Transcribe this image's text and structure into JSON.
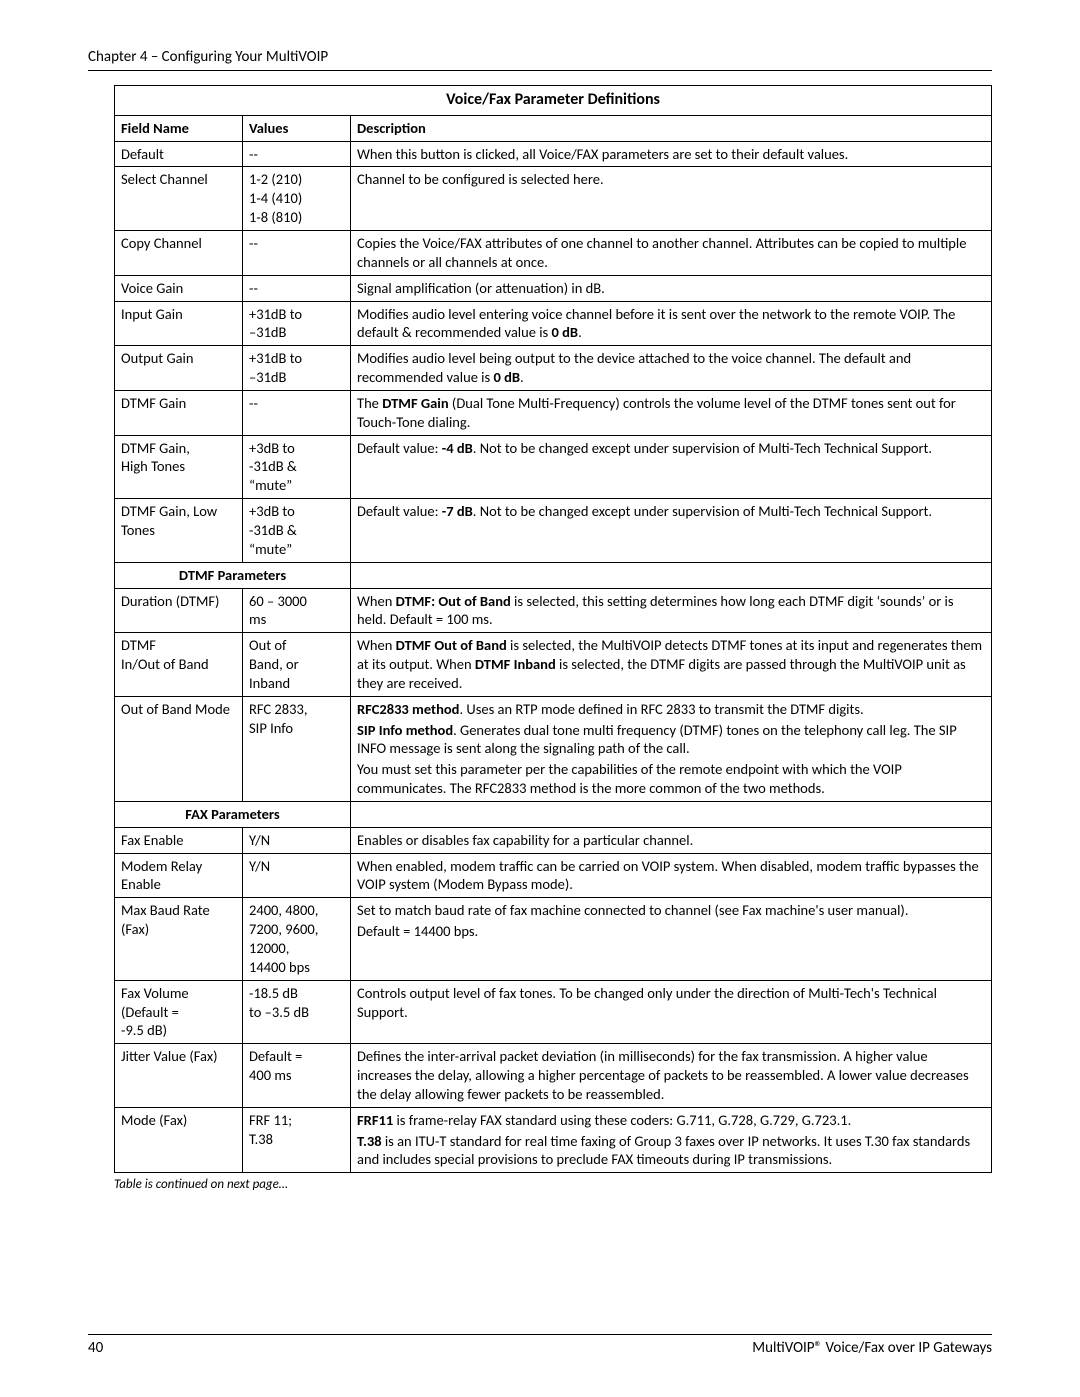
{
  "chapter": "Chapter 4 – Configuring Your MultiVOIP",
  "table": {
    "title": "Voice/Fax Parameter Definitions",
    "headers": {
      "field": "Field Name",
      "values": "Values",
      "desc": "Description"
    },
    "sections": {
      "dtmf": "DTMF Parameters",
      "fax": "FAX Parameters"
    },
    "rows": {
      "default": {
        "field": "Default",
        "values": "--",
        "desc": "When this button is clicked, all Voice/FAX parameters are set to their default values."
      },
      "select": {
        "field": "Select Channel",
        "values": "1-2 (210)\n1-4 (410)\n1-8 (810)",
        "desc": "Channel to be configured is selected here."
      },
      "copy": {
        "field": "Copy Channel",
        "values": "--",
        "desc": "Copies the Voice/FAX attributes of one channel to another channel. Attributes can be copied to multiple channels or all channels at once."
      },
      "voicegain": {
        "field": "Voice Gain",
        "values": "--",
        "desc": "Signal amplification (or attenuation) in dB."
      },
      "inputgain": {
        "field": "Input Gain",
        "values": "+31dB to\n–31dB",
        "desc_pre": "Modifies audio level entering voice channel before it is sent over the network to the remote VOIP. The default & recommended value is ",
        "desc_bold": "0 dB",
        "desc_post": "."
      },
      "outputgain": {
        "field": "Output Gain",
        "values": "+31dB to\n–31dB",
        "desc_pre": "Modifies audio level being output to the device attached to the voice channel. The default and recommended value is ",
        "desc_bold": "0 dB",
        "desc_post": "."
      },
      "dtmfgain": {
        "field": "DTMF Gain",
        "values": "--",
        "desc_pre": "The ",
        "desc_bold": "DTMF Gain",
        "desc_post": " (Dual Tone Multi-Frequency) controls the volume level of the DTMF tones sent out for Touch-Tone dialing."
      },
      "dtmfhigh": {
        "field": "DTMF Gain,\nHigh Tones",
        "values": "+3dB to\n-31dB &\n“mute”",
        "desc_pre": "Default value: ",
        "desc_bold": "-4 dB",
        "desc_post": ". Not to be changed except under supervision of Multi-Tech Technical Support."
      },
      "dtmflow": {
        "field": "DTMF Gain, Low\nTones",
        "values": "+3dB to\n-31dB &\n“mute”",
        "desc_pre": "Default value: ",
        "desc_bold": "-7 dB",
        "desc_post": ". Not to be changed except under supervision of Multi-Tech Technical Support."
      },
      "duration": {
        "field": "Duration (DTMF)",
        "values": "60 – 3000\nms",
        "desc_pre": "When ",
        "desc_bold": "DTMF: Out of Band",
        "desc_post": " is selected, this setting determines how long each DTMF digit ‘sounds’ or is held. Default = 100 ms."
      },
      "inout": {
        "field": "DTMF\nIn/Out of Band",
        "values": "Out of\nBand, or\nInband",
        "p1_pre": "When ",
        "p1_b": "DTMF Out of Band",
        "p1_post": " is selected, the MultiVOIP detects DTMF tones at its input and regenerates them at its output. When ",
        "p1_b2": "DTMF Inband",
        "p1_post2": " is selected, the DTMF digits are passed through the MultiVOIP unit as they are received."
      },
      "oobmode": {
        "field": "Out of Band Mode",
        "values": "RFC 2833,\nSIP Info",
        "p1_b": "RFC2833 method",
        "p1_post": ". Uses an RTP mode defined in RFC 2833 to transmit the DTMF digits.",
        "p2_b": "SIP Info method",
        "p2_post": ". Generates dual tone multi frequency (DTMF) tones on the telephony call leg. The SIP INFO message is sent along the signaling path of the call.",
        "p3": "You must set this parameter per the capabilities of the remote endpoint with which the VOIP communicates. The RFC2833 method is the more common of the two methods."
      },
      "faxenable": {
        "field": "Fax Enable",
        "values": "Y/N",
        "desc": "Enables or disables fax capability for a particular channel."
      },
      "modemrelay": {
        "field": "Modem Relay\nEnable",
        "values": "Y/N",
        "desc": "When enabled, modem traffic can be carried on VOIP system. When disabled, modem traffic bypasses the VOIP system (Modem Bypass mode)."
      },
      "maxbaud": {
        "field": "Max Baud Rate\n(Fax)",
        "values": "2400, 4800,\n7200, 9600,\n12000,\n14400 bps",
        "p1": "Set to match baud rate of fax machine connected to channel (see Fax machine's user manual).",
        "p2": "Default = 14400 bps."
      },
      "faxvol": {
        "field": "Fax Volume\n(Default =\n-9.5 dB)",
        "values": "-18.5 dB\nto –3.5 dB",
        "desc": "Controls output level of fax tones. To be changed only under the direction of Multi-Tech's Technical Support."
      },
      "jitter": {
        "field": "Jitter Value (Fax)",
        "values": "Default =\n400 ms",
        "desc": "Defines the inter-arrival packet deviation (in milliseconds) for the fax transmission. A higher value increases the delay, allowing a higher percentage of packets to be reassembled. A lower value decreases the delay allowing fewer packets to be reassembled."
      },
      "mode": {
        "field": "Mode (Fax)",
        "values": "FRF 11;\nT.38",
        "p1_b": "FRF11",
        "p1_post": " is frame-relay FAX standard using these coders: G.711, G.728, G.729, G.723.1.",
        "p2_b": "T.38",
        "p2_post": " is an ITU-T standard for real time faxing of Group 3 faxes over IP networks. It uses T.30 fax standards and includes special provisions to preclude FAX timeouts during IP transmissions."
      }
    }
  },
  "continued": "Table is continued on next page…",
  "footer": {
    "page": "40",
    "doc": "MultiVOIP® Voice/Fax over IP Gateways"
  }
}
